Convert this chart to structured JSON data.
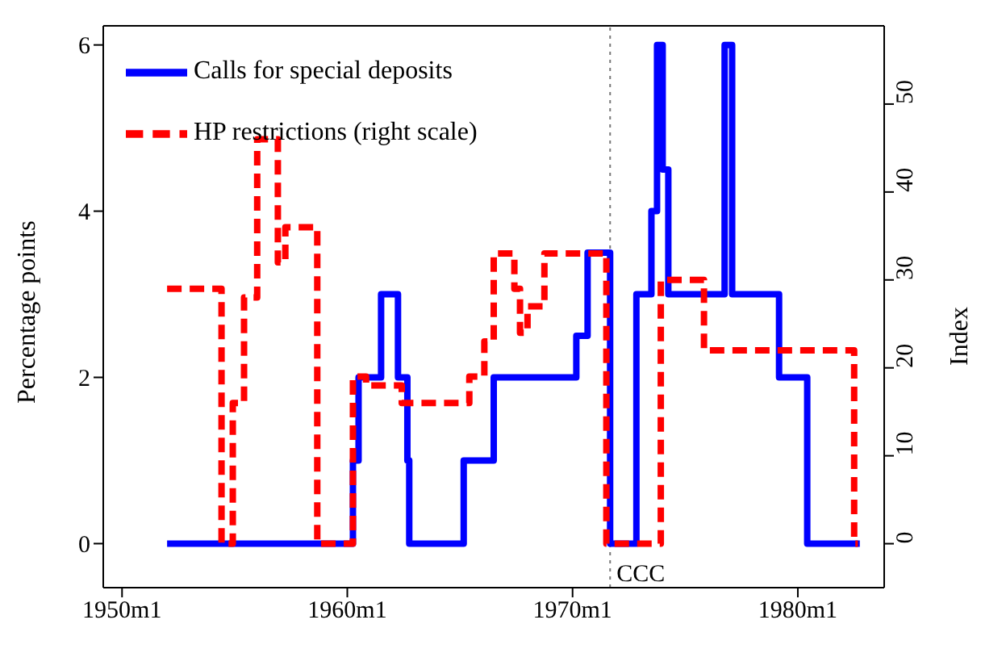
{
  "chart_data": {
    "type": "step",
    "ylabel": "Percentage points",
    "y2label": "Index",
    "xlim": [
      "1949-03",
      "1983-11"
    ],
    "xticks": [
      {
        "value": "1950-01",
        "label": "1950m1"
      },
      {
        "value": "1960-01",
        "label": "1960m1"
      },
      {
        "value": "1970-01",
        "label": "1970m1"
      },
      {
        "value": "1980-01",
        "label": "1980m1"
      }
    ],
    "ylim": [
      -0.53,
      6.23
    ],
    "yticks": [
      0,
      2,
      4,
      6
    ],
    "y2lim": [
      -5,
      58.9
    ],
    "y2ticks": [
      0,
      10,
      20,
      30,
      40,
      50
    ],
    "legend": "top left",
    "marker": "none",
    "ref_lines": [
      {
        "axis": "x",
        "value": "1971-09",
        "label": "CCC",
        "color": "#777777",
        "line_style": "dotted"
      }
    ],
    "series": [
      {
        "name": "Calls for special deposits",
        "color": "#0000ff",
        "line_style": "solid",
        "x": [
          "1952-01",
          "1960-04",
          "1960-07",
          "1961-07",
          "1962-04",
          "1962-09",
          "1962-10",
          "1965-03",
          "1966-07",
          "1970-03",
          "1970-09",
          "1971-09",
          "1972-11",
          "1973-07",
          "1973-10",
          "1974-01",
          "1974-04",
          "1976-10",
          "1977-02",
          "1979-03",
          "1980-06",
          "1982-10"
        ],
        "values": [
          0,
          1,
          2,
          3,
          2,
          1,
          0,
          1,
          2,
          2.5,
          3.5,
          0,
          3,
          4,
          6,
          4.5,
          3,
          6,
          3,
          2,
          0,
          0
        ]
      },
      {
        "name": "HP restrictions (right scale)",
        "color": "#ff0000",
        "line_style": "dashed",
        "axis": "y2",
        "x": [
          "1952-01",
          "1954-06",
          "1954-12",
          "1955-06",
          "1956-01",
          "1956-12",
          "1957-04",
          "1958-09",
          "1960-04",
          "1960-11",
          "1962-06",
          "1965-06",
          "1966-02",
          "1966-07",
          "1967-06",
          "1967-09",
          "1968-01",
          "1968-10",
          "1971-07",
          "1973-12",
          "1975-11",
          "1982-07",
          "1982-09"
        ],
        "values": [
          29,
          0,
          16,
          28,
          46,
          32,
          36,
          0,
          19,
          18,
          16,
          19,
          23,
          33,
          29,
          24,
          27,
          33,
          0,
          30,
          22,
          0,
          0
        ]
      }
    ]
  }
}
